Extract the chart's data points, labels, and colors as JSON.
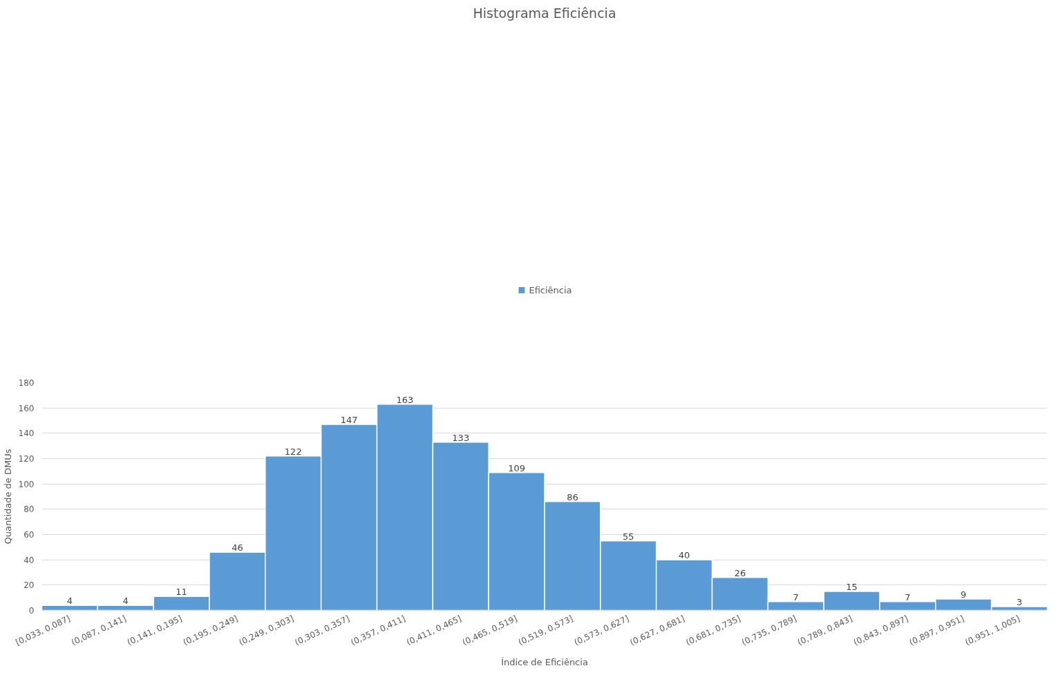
{
  "chart_data": {
    "type": "bar",
    "title": "Histograma Eficiência",
    "xlabel": "Índice de Eficiência",
    "ylabel": "Quantidade de DMUs",
    "categories": [
      "[0,033, 0,087]",
      "(0,087, 0,141]",
      "(0,141, 0,195]",
      "(0,195, 0,249]",
      "(0,249, 0,303]",
      "(0,303, 0,357]",
      "(0,357, 0,411]",
      "(0,411, 0,465]",
      "(0,465, 0,519]",
      "(0,519, 0,573]",
      "(0,573, 0,627]",
      "(0,627, 0,681]",
      "(0,681, 0,735]",
      "(0,735, 0,789]",
      "(0,789, 0,843]",
      "(0,843, 0,897]",
      "(0,897, 0,951]",
      "(0,951, 1,005]"
    ],
    "series": [
      {
        "name": "Eficiência",
        "color": "#5b9bd5",
        "values": [
          4,
          4,
          11,
          46,
          122,
          147,
          163,
          133,
          109,
          86,
          55,
          40,
          26,
          7,
          15,
          7,
          9,
          3
        ]
      }
    ],
    "ylim": [
      0,
      180
    ],
    "yticks": [
      0,
      20,
      40,
      60,
      80,
      100,
      120,
      140,
      160,
      180
    ],
    "grid": "y",
    "legend": "top",
    "data_labels": true
  }
}
